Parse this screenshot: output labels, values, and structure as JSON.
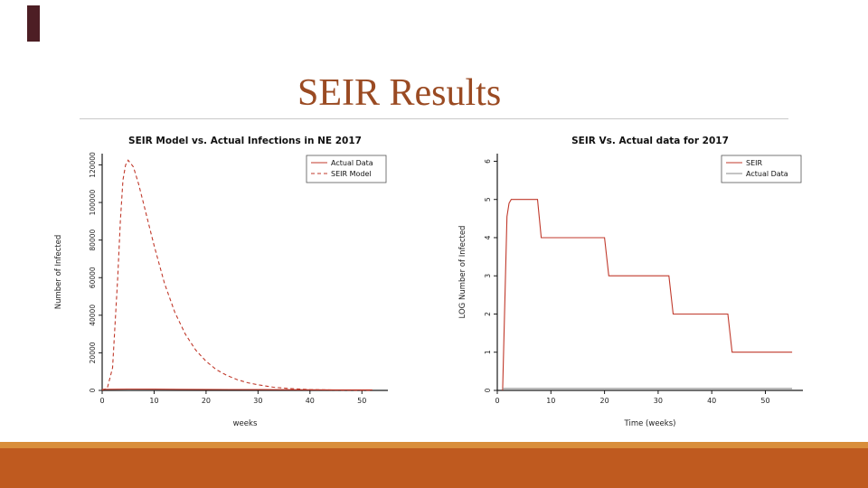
{
  "slide": {
    "title": "SEIR Results"
  },
  "theme": {
    "title_color": "#9a4a22",
    "divider_color": "#c9c9c9",
    "corner_tab_color": "#4d1e24",
    "accent_strip_color": "#d98e3b",
    "accent_bar_color": "#bf5a1f",
    "series_red": "#c0392b",
    "series_gray": "#8a8a8a",
    "axis_color": "#1a1a1a"
  },
  "chart_data": [
    {
      "name": "seir-model-vs-actual-ne-2017",
      "type": "line",
      "title": "SEIR Model vs. Actual Infections in NE 2017",
      "xlabel": "weeks",
      "ylabel": "Number of Infected",
      "xlim": [
        0,
        55
      ],
      "ylim": [
        0,
        126000
      ],
      "xticks": [
        0,
        10,
        20,
        30,
        40,
        50
      ],
      "yticks": [
        0,
        20000,
        40000,
        60000,
        80000,
        100000,
        120000
      ],
      "grid": false,
      "legend_position": "top-right",
      "series": [
        {
          "name": "Actual Data",
          "color": "#c0392b",
          "dash": "",
          "x": [
            0,
            5,
            10,
            15,
            20,
            25,
            30,
            35,
            40,
            45,
            50,
            52
          ],
          "y": [
            600,
            700,
            650,
            600,
            550,
            500,
            450,
            400,
            350,
            300,
            300,
            300
          ]
        },
        {
          "name": "SEIR Model",
          "color": "#c0392b",
          "dash": "4 3",
          "x": [
            0,
            1,
            2,
            3,
            3.5,
            4,
            4.5,
            5,
            6,
            7,
            8,
            9,
            10,
            12,
            14,
            16,
            18,
            20,
            22,
            24,
            26,
            28,
            30,
            33,
            36,
            40,
            45,
            50,
            52
          ],
          "y": [
            100,
            1200,
            12000,
            60000,
            90000,
            112000,
            120000,
            122500,
            119000,
            110000,
            99000,
            88000,
            77000,
            57000,
            41500,
            30000,
            21500,
            15500,
            11000,
            8000,
            5700,
            4100,
            3000,
            1700,
            1000,
            450,
            200,
            120,
            100
          ]
        }
      ]
    },
    {
      "name": "seir-vs-actual-log-2017",
      "type": "line",
      "title": "SEIR Vs. Actual data for 2017",
      "xlabel": "Time (weeks)",
      "ylabel": "LOG Number of Infected",
      "xlim": [
        0,
        57
      ],
      "ylim": [
        0,
        6.2
      ],
      "xticks": [
        0,
        10,
        20,
        30,
        40,
        50
      ],
      "yticks": [
        0,
        1,
        2,
        3,
        4,
        5,
        6
      ],
      "grid": false,
      "legend_position": "top-right",
      "series": [
        {
          "name": "SEIR",
          "color": "#c0392b",
          "dash": "",
          "x": [
            1,
            1.8,
            2.2,
            2.6,
            3,
            7.5,
            8.2,
            20,
            20.8,
            32,
            32.8,
            43,
            43.8,
            55
          ],
          "y": [
            0,
            4.55,
            4.9,
            5.0,
            5.0,
            5.0,
            4.0,
            4.0,
            3.0,
            3.0,
            2.0,
            2.0,
            1.0,
            1.0
          ]
        },
        {
          "name": "Actual Data",
          "color": "#8a8a8a",
          "dash": "",
          "x": [
            1,
            10,
            20,
            30,
            40,
            50,
            55
          ],
          "y": [
            0.05,
            0.05,
            0.05,
            0.05,
            0.05,
            0.05,
            0.05
          ]
        }
      ]
    }
  ]
}
